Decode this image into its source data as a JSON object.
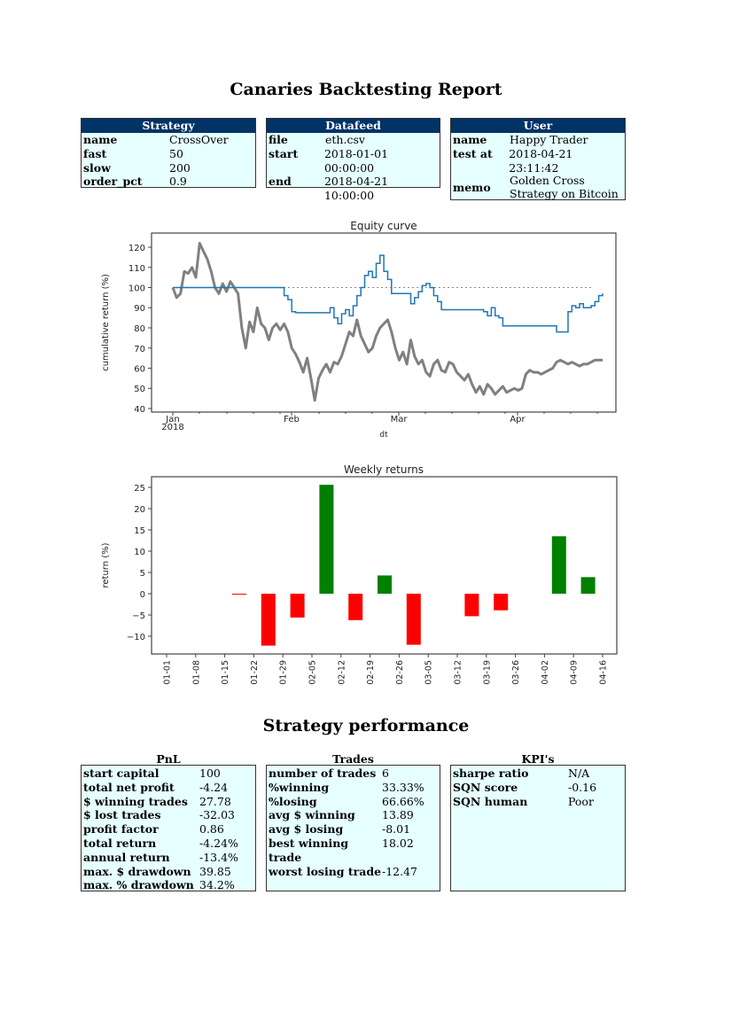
{
  "report_title": "Canaries Backtesting Report",
  "info_tables": {
    "strategy": {
      "title": "Strategy",
      "rows": [
        {
          "key": "name",
          "value": "CrossOver"
        },
        {
          "key": "fast",
          "value": "50"
        },
        {
          "key": "slow",
          "value": "200"
        },
        {
          "key": "order_pct",
          "value": "0.9"
        }
      ]
    },
    "datafeed": {
      "title": "Datafeed",
      "rows": [
        {
          "key": "file",
          "value": "eth.csv"
        },
        {
          "key": "start",
          "value": "2018-01-01 00:00:00"
        },
        {
          "key": "end",
          "value": "2018-04-21 10:00:00"
        }
      ]
    },
    "user": {
      "title": "User",
      "rows": [
        {
          "key": "name",
          "value": "Happy Trader"
        },
        {
          "key": "test at",
          "value": "2018-04-21 23:11:42"
        },
        {
          "key": "memo",
          "value": "Golden Cross",
          "value2": "Strategy on Bitcoin"
        }
      ]
    }
  },
  "performance_title": "Strategy performance",
  "perf_tables": {
    "pnl": {
      "title": "PnL",
      "rows": [
        {
          "key": "start capital",
          "value": "100"
        },
        {
          "key": "total net profit",
          "value": "-4.24"
        },
        {
          "key": "$ winning trades",
          "value": "27.78"
        },
        {
          "key": "$ lost trades",
          "value": "-32.03"
        },
        {
          "key": "profit factor",
          "value": "0.86"
        },
        {
          "key": "total return",
          "value": "-4.24%"
        },
        {
          "key": "annual return",
          "value": "-13.4%"
        },
        {
          "key": "max. $ drawdown",
          "value": "39.85"
        },
        {
          "key": "max. % drawdown",
          "value": "34.2%"
        }
      ]
    },
    "trades": {
      "title": "Trades",
      "rows": [
        {
          "key": "number of trades",
          "value": "6"
        },
        {
          "key": "%winning",
          "value": "33.33%"
        },
        {
          "key": "%losing",
          "value": "66.66%"
        },
        {
          "key": "avg $ winning",
          "value": "13.89"
        },
        {
          "key": "avg $ losing",
          "value": "-8.01"
        },
        {
          "key": "best winning trade",
          "value": "18.02"
        },
        {
          "key": "worst losing trade",
          "value": "-12.47"
        }
      ]
    },
    "kpis": {
      "title": "KPI's",
      "rows": [
        {
          "key": "sharpe ratio",
          "value": "N/A"
        },
        {
          "key": "SQN score",
          "value": "-0.16"
        },
        {
          "key": "SQN human",
          "value": "Poor"
        }
      ]
    }
  },
  "colors": {
    "table_header": "#003366",
    "table_body": "#e6ffff",
    "strategy_line": "#1f77b4",
    "benchmark_line": "#808080",
    "positive_bar": "#008000",
    "negative_bar": "#ff0000"
  },
  "chart_data": [
    {
      "type": "line",
      "title": "Equity curve",
      "xlabel": "dt",
      "ylabel": "cumulative return (%)",
      "x_tick_labels": [
        "Jan\n2018",
        "Feb",
        "Mar",
        "Apr"
      ],
      "y_ticks": [
        40,
        50,
        60,
        70,
        80,
        90,
        100,
        110,
        120
      ],
      "ylim": [
        38,
        126
      ],
      "reference_line": {
        "value": 100,
        "style": "dotted"
      },
      "series": [
        {
          "name": "strategy",
          "color": "#1f77b4",
          "x_days": [
            0,
            3,
            6,
            28,
            29,
            30,
            31,
            32,
            33,
            34,
            40,
            41,
            42,
            43,
            44,
            45,
            46,
            47,
            48,
            49,
            50,
            51,
            52,
            53,
            54,
            55,
            56,
            57,
            58,
            59,
            60,
            61,
            62,
            63,
            64,
            65,
            66,
            67,
            68,
            69,
            70,
            71,
            72,
            73,
            74,
            80,
            81,
            82,
            83,
            84,
            85,
            86,
            87,
            91,
            99,
            100,
            101,
            102
          ],
          "values": [
            100,
            100,
            100,
            100,
            96,
            94,
            88,
            87.5,
            87.5,
            87.5,
            87.5,
            90,
            85,
            82,
            87,
            89,
            86,
            91,
            96,
            100,
            106,
            108,
            105,
            112,
            116,
            108,
            104,
            97,
            97,
            97,
            97,
            97,
            92,
            95,
            98,
            101,
            102,
            100,
            96,
            93,
            89,
            89,
            89,
            89,
            89,
            89,
            88,
            86,
            90,
            86,
            85,
            81,
            81,
            81,
            81,
            78,
            78,
            78
          ],
          "tail_days": [
            103,
            104,
            105,
            106,
            107,
            108,
            109,
            110,
            111,
            112
          ],
          "tail_values": [
            88,
            91,
            90,
            92,
            90,
            90,
            91,
            93,
            96,
            97
          ]
        },
        {
          "name": "benchmark",
          "color": "#808080",
          "x_days": [
            0,
            1,
            2,
            3,
            4,
            5,
            6,
            7,
            8,
            9,
            10,
            11,
            12,
            13,
            14,
            15,
            16,
            17,
            18,
            19,
            20,
            21,
            22,
            23,
            24,
            25,
            26,
            27,
            28,
            29,
            30,
            31,
            32,
            33,
            34,
            35,
            36,
            37,
            38,
            39,
            40,
            41,
            42,
            43,
            44,
            45,
            46,
            47,
            48,
            49,
            50,
            51,
            52,
            53,
            54,
            55,
            56,
            57,
            58,
            59,
            60,
            61,
            62,
            63,
            64,
            65,
            66,
            67,
            68,
            69,
            70,
            71,
            72,
            73,
            74,
            75,
            76,
            77,
            78,
            79,
            80,
            81,
            82,
            83,
            84,
            85,
            86,
            87,
            88,
            89,
            90,
            91,
            92,
            93,
            94,
            95,
            96,
            97,
            98,
            99,
            100,
            101,
            102,
            103,
            104,
            105,
            106,
            107,
            108,
            109,
            110,
            111,
            112
          ],
          "values": [
            100,
            95,
            97,
            108,
            107,
            110,
            105,
            122,
            118,
            114,
            108,
            100,
            97,
            102,
            98,
            103,
            100,
            97,
            80,
            70,
            83,
            78,
            90,
            82,
            80,
            74,
            80,
            82,
            79,
            82,
            78,
            70,
            67,
            63,
            58,
            65,
            55,
            44,
            55,
            59,
            62,
            58,
            63,
            62,
            66,
            72,
            78,
            76,
            84,
            76,
            72,
            68,
            70,
            76,
            80,
            82,
            84,
            78,
            70,
            64,
            68,
            62,
            74,
            66,
            62,
            64,
            58,
            56,
            62,
            64,
            59,
            58,
            63,
            62,
            58,
            56,
            54,
            57,
            52,
            48,
            51,
            47,
            52,
            50,
            47,
            49,
            51,
            48,
            49,
            50,
            49,
            50,
            57,
            59,
            58,
            58,
            57,
            58,
            59,
            60,
            63,
            64,
            63,
            62,
            63,
            62,
            61,
            62,
            62,
            63,
            64,
            64,
            64
          ]
        }
      ]
    },
    {
      "type": "bar",
      "title": "Weekly returns",
      "xlabel": "",
      "ylabel": "return (%)",
      "categories": [
        "01-01",
        "01-08",
        "01-15",
        "01-22",
        "01-29",
        "02-05",
        "02-12",
        "02-19",
        "02-26",
        "03-05",
        "03-12",
        "03-19",
        "03-26",
        "04-02",
        "04-09",
        "04-16"
      ],
      "values": [
        0,
        0,
        -0.2,
        -12.2,
        -5.6,
        25.6,
        -6.2,
        4.3,
        -12.0,
        0,
        -5.3,
        -3.9,
        0,
        13.5,
        3.9,
        0
      ],
      "y_ticks": [
        -10,
        -5,
        0,
        5,
        10,
        15,
        20,
        25
      ],
      "ylim": [
        -14,
        27
      ],
      "colors": {
        "positive": "#008000",
        "negative": "#ff0000"
      }
    }
  ]
}
